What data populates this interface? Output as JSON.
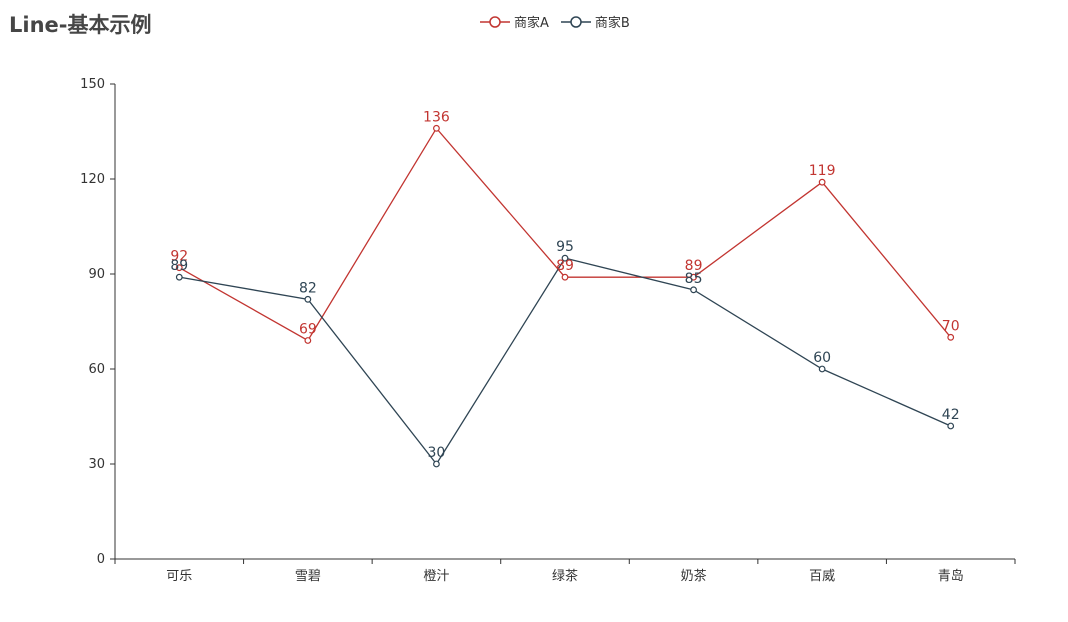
{
  "title": "Line-基本示例",
  "colors": {
    "seriesA": "#c23531",
    "seriesB": "#2f4554",
    "axis": "#333333"
  },
  "chart_data": {
    "type": "line",
    "categories": [
      "可乐",
      "雪碧",
      "橙汁",
      "绿茶",
      "奶茶",
      "百威",
      "青岛"
    ],
    "series": [
      {
        "name": "商家A",
        "values": [
          92,
          69,
          136,
          89,
          89,
          119,
          70
        ]
      },
      {
        "name": "商家B",
        "values": [
          89,
          82,
          30,
          95,
          85,
          60,
          42
        ]
      }
    ],
    "ylim": [
      0,
      150
    ],
    "yticks": [
      0,
      30,
      60,
      90,
      120,
      150
    ],
    "grid": false,
    "legend": "top-center",
    "data_labels": true
  }
}
